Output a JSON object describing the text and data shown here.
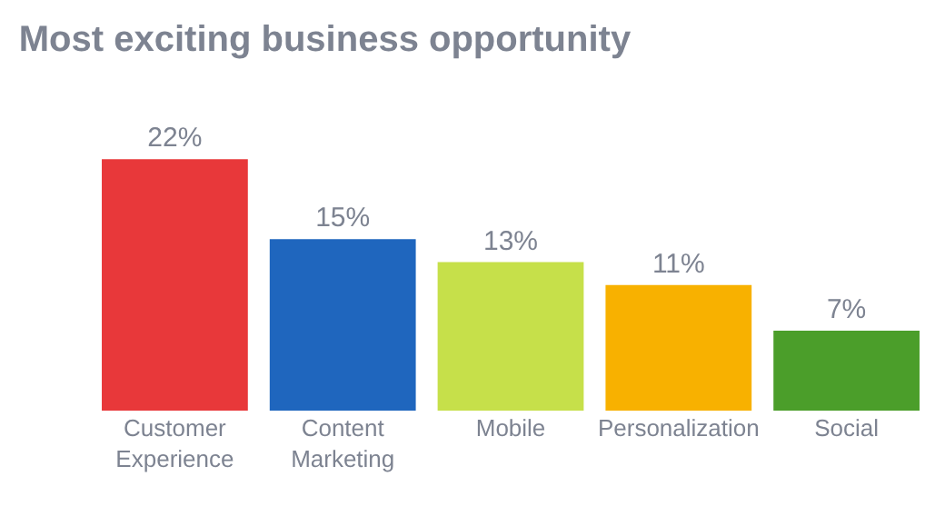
{
  "chart_data": {
    "type": "bar",
    "title": "Most exciting business opportunity",
    "categories": [
      "Customer Experience",
      "Content Marketing",
      "Mobile",
      "Personalization",
      "Social"
    ],
    "values": [
      22,
      15,
      13,
      11,
      7
    ],
    "value_labels": [
      "22%",
      "15%",
      "13%",
      "11%",
      "7%"
    ],
    "colors": [
      "#e8383a",
      "#1f66be",
      "#c6e04a",
      "#f8b100",
      "#4b9e2a"
    ]
  }
}
